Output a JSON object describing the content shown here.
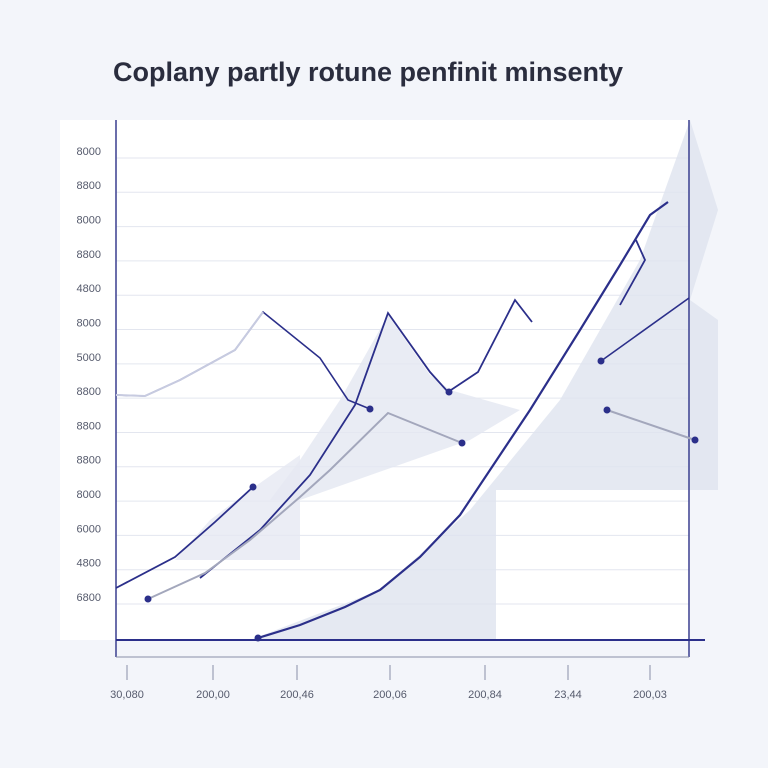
{
  "title": "Coplany partly rotune penfinit minsenty",
  "y_axis_labels": [
    "8000",
    "8800",
    "8000",
    "8800",
    "4800",
    "8000",
    "5000",
    "8800",
    "8800",
    "8800",
    "8000",
    "6000",
    "4800",
    "6800"
  ],
  "x_axis_labels": [
    "30,080",
    "200,00",
    "200,46",
    "200,06",
    "200,84",
    "23,44",
    "200,03"
  ]
}
